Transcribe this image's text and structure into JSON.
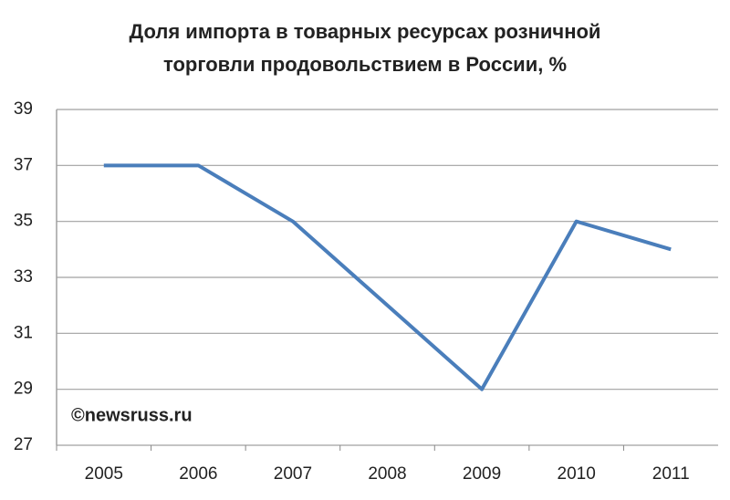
{
  "chart_data": {
    "type": "line",
    "title": [
      "Доля импорта в товарных ресурсах розничной",
      "торговли продовольствием в России, %"
    ],
    "annotation": "©newsruss.ru",
    "categories": [
      "2005",
      "2006",
      "2007",
      "2008",
      "2009",
      "2010",
      "2011"
    ],
    "series": [
      {
        "name": "Доля импорта",
        "color": "#4a7ebb",
        "values": [
          37,
          37,
          35,
          32,
          29,
          35,
          34
        ]
      }
    ],
    "ylim": [
      27,
      39
    ],
    "yticks": [
      27,
      29,
      31,
      33,
      35,
      37,
      39
    ],
    "grid": true,
    "legend": false
  }
}
